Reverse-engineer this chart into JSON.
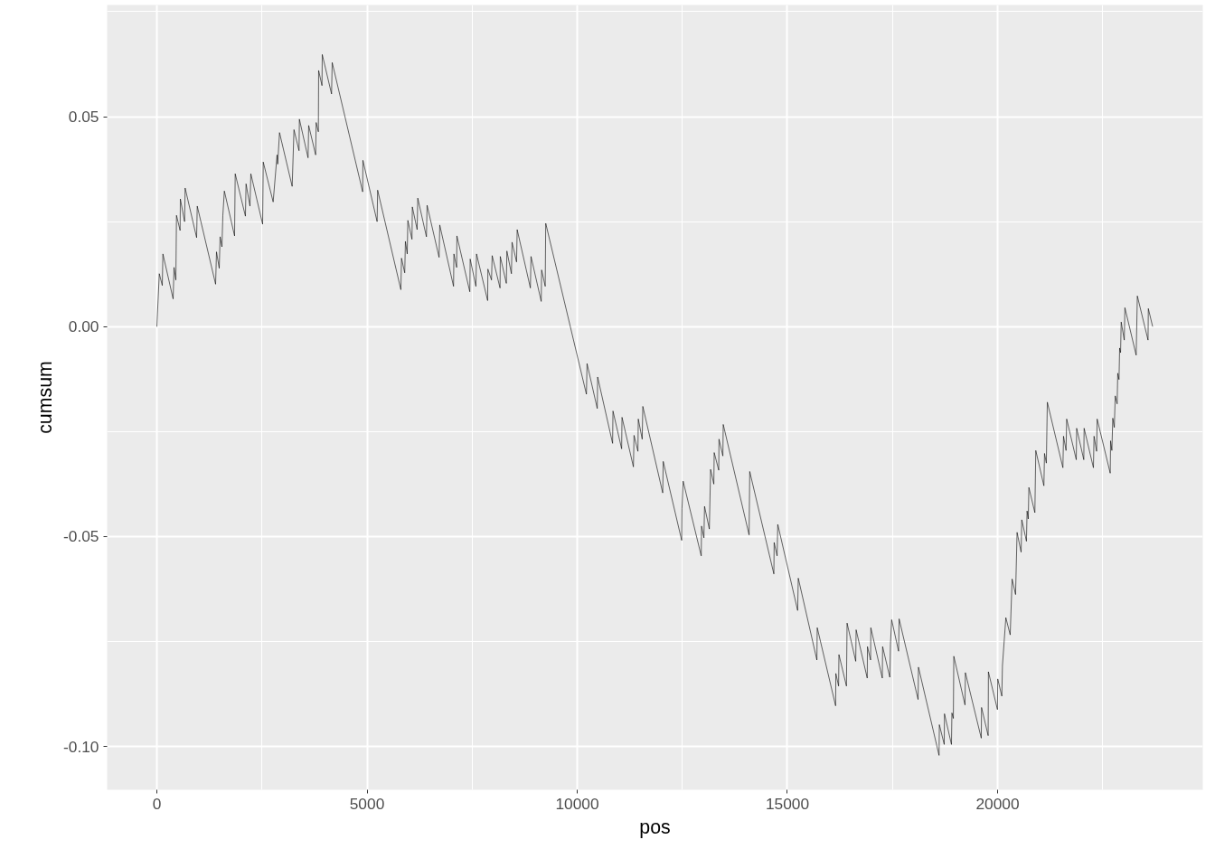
{
  "chart_data": {
    "type": "line",
    "xlabel": "pos",
    "ylabel": "cumsum",
    "grid": true,
    "xlim": [
      -1183,
      24882
    ],
    "ylim": [
      -0.1103,
      0.0766
    ],
    "xticks": [
      0,
      5000,
      10000,
      15000,
      20000
    ],
    "yticks": [
      {
        "value": -0.1,
        "label": "-0.10"
      },
      {
        "value": -0.05,
        "label": "-0.05"
      },
      {
        "value": 0,
        "label": "0.00"
      },
      {
        "value": 0.05,
        "label": "0.05"
      }
    ],
    "series": [
      {
        "color": "#000000",
        "x": [
          0,
          58,
          129,
          144,
          387,
          409,
          452,
          467,
          553,
          559,
          660,
          673,
          946,
          961,
          1398,
          1419,
          1484,
          1505,
          1548,
          1570,
          1606,
          1849,
          1864,
          2107,
          2122,
          2215,
          2236,
          2516,
          2531,
          2767,
          2860,
          2874,
          2918,
          3219,
          3262,
          3382,
          3391,
          3597,
          3612,
          3778,
          3790,
          3842,
          3849,
          3928,
          3935,
          4156,
          4171,
          4896,
          4902,
          5240,
          5252,
          5805,
          5820,
          5897,
          5913,
          5956,
          5971,
          6069,
          6078,
          6192,
          6207,
          6413,
          6429,
          6714,
          6730,
          7058,
          7067,
          7132,
          7138,
          7445,
          7454,
          7590,
          7605,
          7869,
          7875,
          7961,
          7977,
          8164,
          8170,
          8314,
          8327,
          8435,
          8450,
          8557,
          8572,
          8886,
          8901,
          9144,
          9153,
          9239,
          9251,
          10219,
          10234,
          10477,
          10486,
          10842,
          10851,
          11057,
          11066,
          11337,
          11352,
          11444,
          11453,
          11546,
          11561,
          12034,
          12046,
          12485,
          12492,
          12520,
          12950,
          12958,
          13014,
          13029,
          13143,
          13173,
          13250,
          13259,
          13367,
          13373,
          13465,
          13474,
          14089,
          14104,
          14678,
          14685,
          14755,
          14771,
          15244,
          15259,
          15702,
          15710,
          16147,
          16153,
          16218,
          16226,
          16405,
          16420,
          16626,
          16635,
          16899,
          16905,
          16979,
          16985,
          17258,
          17265,
          17437,
          17452,
          17480,
          17645,
          17658,
          18109,
          18118,
          18608,
          18615,
          18731,
          18737,
          18903,
          18914,
          18948,
          18959,
          19225,
          19234,
          19612,
          19619,
          19776,
          19782,
          19997,
          20004,
          20101,
          20116,
          20197,
          20300,
          20346,
          20428,
          20464,
          20560,
          20576,
          20687,
          20702,
          20730,
          20745,
          20887,
          20909,
          21102,
          21117,
          21160,
          21184,
          21554,
          21569,
          21629,
          21644,
          21872,
          21881,
          22051,
          22059,
          22280,
          22295,
          22356,
          22369,
          22680,
          22689,
          22719,
          22741,
          22777,
          22799,
          22844,
          22859,
          22889,
          22904,
          22926,
          22941,
          23014,
          23029,
          23297,
          23325,
          23579,
          23586,
          23689
        ],
        "values": [
          0,
          0.0126,
          0.0098,
          0.0173,
          0.0066,
          0.0141,
          0.0111,
          0.0265,
          0.0229,
          0.0304,
          0.025,
          0.033,
          0.0212,
          0.0287,
          0.0101,
          0.0178,
          0.0139,
          0.0214,
          0.019,
          0.0265,
          0.0323,
          0.0216,
          0.0364,
          0.0263,
          0.034,
          0.0287,
          0.0364,
          0.0244,
          0.0392,
          0.0297,
          0.0409,
          0.0387,
          0.0462,
          0.0334,
          0.0469,
          0.0419,
          0.0494,
          0.0402,
          0.0479,
          0.0409,
          0.0486,
          0.0464,
          0.061,
          0.0574,
          0.0648,
          0.0554,
          0.0629,
          0.0321,
          0.0396,
          0.025,
          0.0325,
          0.0088,
          0.0163,
          0.0128,
          0.0203,
          0.0173,
          0.0253,
          0.0208,
          0.0285,
          0.0231,
          0.0306,
          0.0214,
          0.0289,
          0.0165,
          0.0242,
          0.0096,
          0.0173,
          0.0141,
          0.0216,
          0.0083,
          0.0161,
          0.0096,
          0.0173,
          0.0062,
          0.0137,
          0.0111,
          0.0169,
          0.0092,
          0.0167,
          0.0103,
          0.018,
          0.0126,
          0.0201,
          0.0154,
          0.0231,
          0.0092,
          0.0167,
          0.006,
          0.0135,
          0.0096,
          0.0246,
          -0.0161,
          -0.0088,
          -0.0195,
          -0.012,
          -0.0278,
          -0.0201,
          -0.0291,
          -0.0216,
          -0.0334,
          -0.0259,
          -0.0297,
          -0.022,
          -0.0268,
          -0.019,
          -0.0396,
          -0.0321,
          -0.0509,
          -0.0434,
          -0.0368,
          -0.0546,
          -0.0475,
          -0.0503,
          -0.0428,
          -0.0482,
          -0.034,
          -0.0375,
          -0.03,
          -0.0342,
          -0.0268,
          -0.0308,
          -0.0233,
          -0.0496,
          -0.0345,
          -0.0589,
          -0.0514,
          -0.0546,
          -0.0471,
          -0.0676,
          -0.0599,
          -0.0794,
          -0.0717,
          -0.0903,
          -0.0826,
          -0.0856,
          -0.0781,
          -0.0856,
          -0.0706,
          -0.0797,
          -0.0722,
          -0.0837,
          -0.0762,
          -0.0794,
          -0.0717,
          -0.0837,
          -0.0762,
          -0.0835,
          -0.0756,
          -0.0698,
          -0.0773,
          -0.0696,
          -0.0888,
          -0.0811,
          -0.1021,
          -0.0948,
          -0.0995,
          -0.0922,
          -0.0995,
          -0.092,
          -0.0933,
          -0.0785,
          -0.0901,
          -0.0824,
          -0.098,
          -0.0907,
          -0.0974,
          -0.0822,
          -0.0912,
          -0.0839,
          -0.088,
          -0.0807,
          -0.0693,
          -0.0734,
          -0.0601,
          -0.0638,
          -0.049,
          -0.0537,
          -0.046,
          -0.0511,
          -0.0439,
          -0.0458,
          -0.0383,
          -0.0443,
          -0.0295,
          -0.0379,
          -0.0302,
          -0.0325,
          -0.018,
          -0.0336,
          -0.0261,
          -0.0295,
          -0.022,
          -0.0317,
          -0.0242,
          -0.0317,
          -0.0242,
          -0.0336,
          -0.0261,
          -0.0297,
          -0.022,
          -0.0349,
          -0.0272,
          -0.0295,
          -0.0218,
          -0.024,
          -0.0165,
          -0.0184,
          -0.0111,
          -0.0126,
          -0.0051,
          -0.0062,
          0.0011,
          -0.0032,
          0.0045,
          -0.0068,
          0.0073,
          -0.0032,
          0.0043,
          0
        ]
      }
    ]
  }
}
